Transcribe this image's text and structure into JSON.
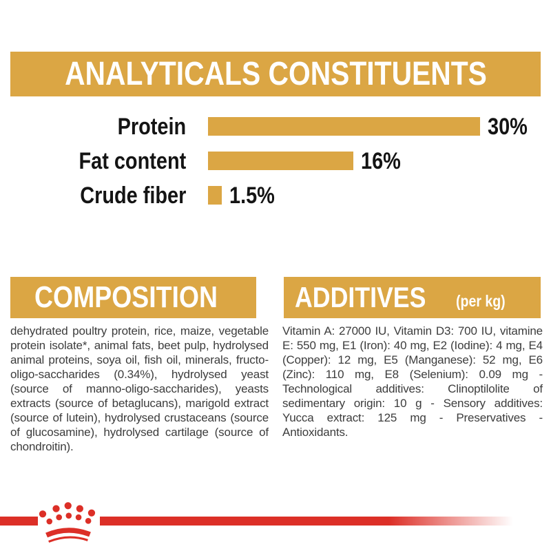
{
  "colors": {
    "gold": "#DBA644",
    "red": "#DC2F27",
    "text_dark": "#3C3C3C",
    "chart_black": "#141414",
    "header_text": "#FFFFFF"
  },
  "header": {
    "title": "ANALYTICALS CONSTITUENTS"
  },
  "chart_data": {
    "type": "bar",
    "orientation": "horizontal",
    "title": "ANALYTICALS CONSTITUENTS",
    "categories": [
      "Protein",
      "Fat content",
      "Crude fiber"
    ],
    "values": [
      30,
      16,
      1.5
    ],
    "value_labels": [
      "30%",
      "16%",
      "1.5%"
    ],
    "unit": "%",
    "xlim": [
      0,
      30
    ],
    "bar_color": "#DBA644",
    "grid": false,
    "legend": false,
    "value_label_position": "right-of-bar"
  },
  "composition": {
    "heading": "COMPOSITION",
    "body": "dehydrated poultry protein, rice, maize, vegetable protein isolate*, animal fats, beet pulp, hydrolysed animal proteins, soya oil, fish oil, minerals, fructo-oligo-saccharides (0.34%), hydrolysed yeast (source of manno-oligo-saccharides), yeasts extracts (source of betaglucans), marigold extract (source of lutein), hydrolysed crustaceans (source of glucosamine), hydrolysed cartilage (source of chondroitin)."
  },
  "additives": {
    "heading": "ADDITIVES",
    "heading_suffix": "(per kg)",
    "body": "Vitamin A: 27000 IU, Vitamin D3: 700 IU, vitamine E: 550 mg, E1 (Iron): 40 mg, E2 (Iodine): 4 mg, E4 (Copper): 12 mg, E5 (Manganese): 52 mg, E6 (Zinc): 110 mg, E8 (Selenium): 0.09 mg - Technological additives: Clinoptilolite of sedimentary origin: 10 g - Sensory additives: Yucca extract: 125 mg - Preservatives - Antioxidants."
  },
  "footer": {
    "brand_logo": "royal-canin-crown"
  }
}
